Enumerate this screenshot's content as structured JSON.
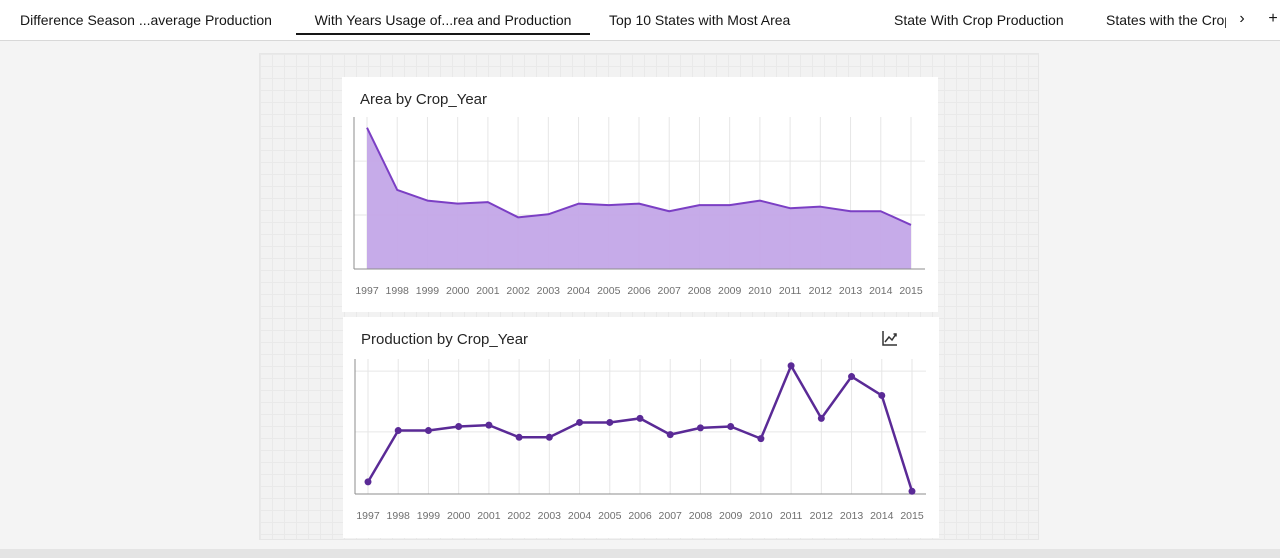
{
  "tabs": [
    {
      "label": "Difference Season ...average Production",
      "active": false
    },
    {
      "label": "With Years Usage of...rea and Production",
      "active": true
    },
    {
      "label": "Top 10  States with Most Area",
      "active": false
    },
    {
      "label": "State With Crop Production",
      "active": false
    },
    {
      "label": "States with the Crop",
      "active": false
    }
  ],
  "tab_controls": {
    "next": "›",
    "add": "+"
  },
  "charts": {
    "area": {
      "title": "Area by Crop_Year",
      "icon": "line-chart-icon",
      "color": "#7b3fc4",
      "fill": "#c3a6e8"
    },
    "production": {
      "title": "Production by Crop_Year",
      "icon": "line-chart-icon",
      "color": "#5a2a96"
    }
  },
  "chart_data": [
    {
      "type": "area",
      "title": "Area by Crop_Year",
      "x": [
        "1997",
        "1998",
        "1999",
        "2000",
        "2001",
        "2002",
        "2003",
        "2004",
        "2005",
        "2006",
        "2007",
        "2008",
        "2009",
        "2010",
        "2011",
        "2012",
        "2013",
        "2014",
        "2015"
      ],
      "series": [
        {
          "values": [
            0.93,
            0.52,
            0.45,
            0.43,
            0.44,
            0.34,
            0.36,
            0.43,
            0.42,
            0.43,
            0.38,
            0.42,
            0.42,
            0.45,
            0.4,
            0.41,
            0.38,
            0.38,
            0.29
          ]
        }
      ],
      "ylim": [
        0,
        1
      ],
      "grid": true
    },
    {
      "type": "line",
      "title": "Production by Crop_Year",
      "x": [
        "1997",
        "1998",
        "1999",
        "2000",
        "2001",
        "2002",
        "2003",
        "2004",
        "2005",
        "2006",
        "2007",
        "2008",
        "2009",
        "2010",
        "2011",
        "2012",
        "2013",
        "2014",
        "2015"
      ],
      "series": [
        {
          "values": [
            0.09,
            0.47,
            0.47,
            0.5,
            0.51,
            0.42,
            0.42,
            0.53,
            0.53,
            0.56,
            0.44,
            0.49,
            0.5,
            0.41,
            0.95,
            0.56,
            0.87,
            0.73,
            0.02
          ]
        }
      ],
      "ylim": [
        0,
        1
      ],
      "grid": true
    }
  ]
}
